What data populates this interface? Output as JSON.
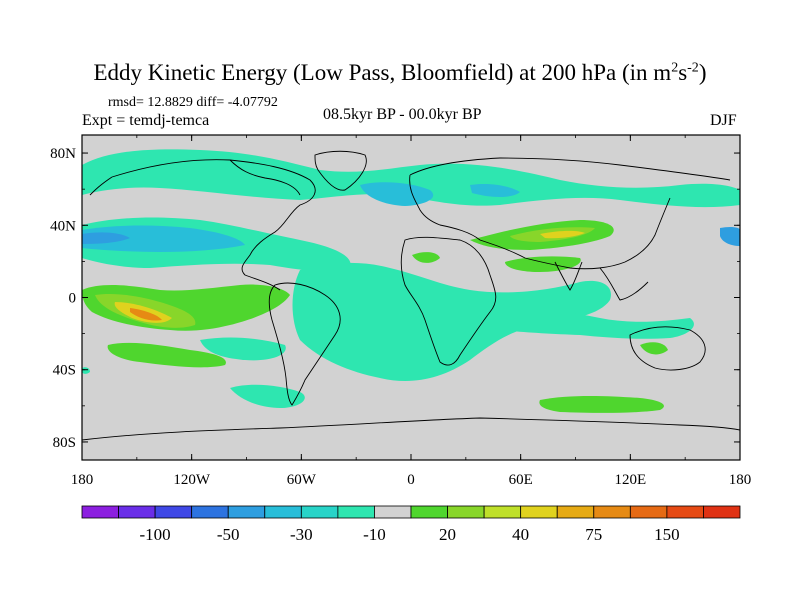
{
  "title_main": "Eddy Kinetic Energy (Low Pass, Bloomfield) at 200 hPa (in m",
  "title_sup1": "2",
  "title_s": "s",
  "title_sup2": "-2",
  "title_close": ")",
  "stats": "rmsd= 12.8829 diff= -4.07792",
  "experiment": "Expt = temdj-temca",
  "period": "08.5kyr BP - 00.0kyr BP",
  "season": "DJF",
  "colors": {
    "land_outline": "#000000",
    "ocean_neutral": "#d2d2d2"
  },
  "chart_data": {
    "type": "heatmap",
    "title": "Eddy Kinetic Energy (Low Pass, Bloomfield) at 200 hPa (in m^2 s^-2)",
    "x_ticks": [
      "180",
      "120W",
      "60W",
      "0",
      "60E",
      "120E",
      "180"
    ],
    "y_ticks": [
      "80N",
      "40N",
      "0",
      "40S",
      "80S"
    ],
    "xlim": [
      -180,
      180
    ],
    "ylim": [
      -90,
      90
    ],
    "colorbar": {
      "colors": [
        "#8c1fe0",
        "#6a2ee8",
        "#3f48e6",
        "#2d73e0",
        "#2e9ee0",
        "#28bed9",
        "#28d4c8",
        "#2ee6b0",
        "#d2d2d2",
        "#4fd62e",
        "#88d62a",
        "#bfe02a",
        "#e0d21e",
        "#e6aa14",
        "#e68a14",
        "#e66a14",
        "#e64a14",
        "#e03214"
      ],
      "labels": [
        "-100",
        "-50",
        "-30",
        "-10",
        "20",
        "40",
        "75",
        "150"
      ]
    },
    "regions": [
      {
        "name": "n-pacific-negative",
        "lon": [
          -180,
          -100
        ],
        "lat": [
          25,
          45
        ],
        "level": "-30"
      },
      {
        "name": "eq-pacific-positive-core",
        "lon": [
          -150,
          -125
        ],
        "lat": [
          -15,
          -5
        ],
        "level": "75"
      },
      {
        "name": "n-africa-asia-jet-positive",
        "lon": [
          40,
          100
        ],
        "lat": [
          30,
          45
        ],
        "level": "40"
      },
      {
        "name": "southern-ocean-positive",
        "lon": [
          60,
          150
        ],
        "lat": [
          -65,
          -55
        ],
        "level": "20"
      }
    ]
  }
}
